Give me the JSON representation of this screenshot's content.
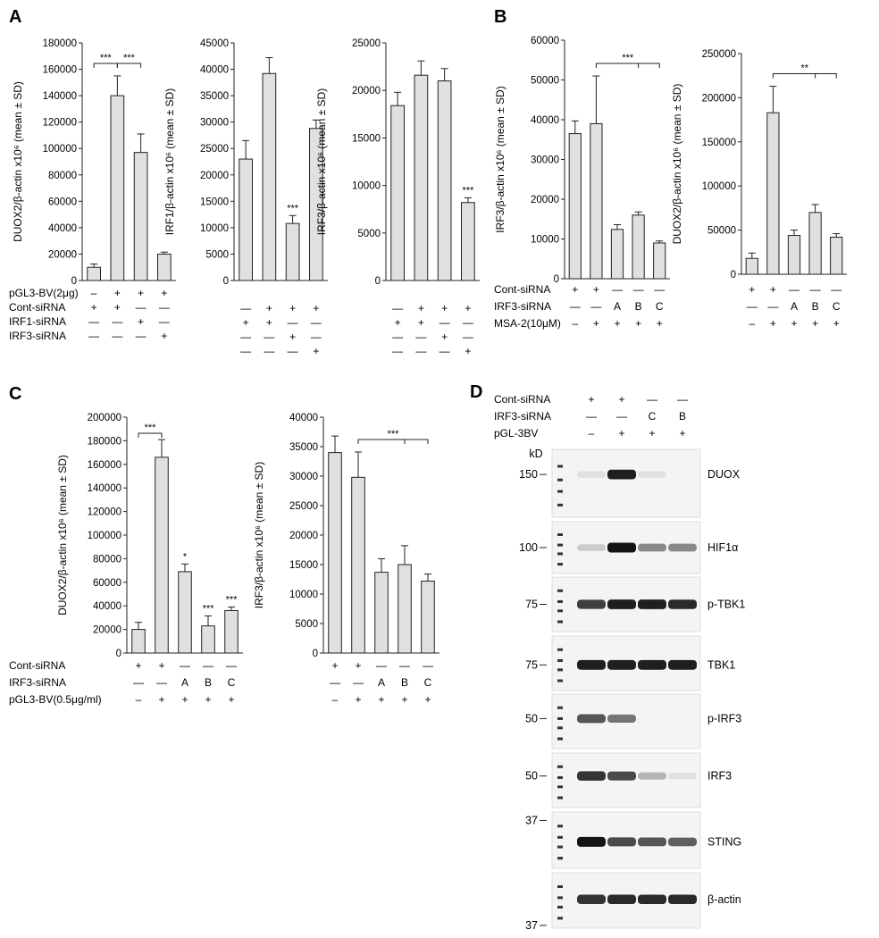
{
  "panels": [
    {
      "letter": "A"
    },
    {
      "letter": "B"
    },
    {
      "letter": "C"
    },
    {
      "letter": "D"
    }
  ],
  "chart_data": [
    {
      "type": "bar",
      "panel": "A",
      "ylabel": "DUOX2/β-actin x10⁶ (mean ± SD)",
      "ylim": [
        0,
        180000
      ],
      "yticks": [
        0,
        20000,
        40000,
        60000,
        80000,
        100000,
        120000,
        140000,
        160000,
        180000
      ],
      "values": [
        10000,
        140000,
        97000,
        20000
      ],
      "errors": [
        2500,
        15000,
        14000,
        1500
      ],
      "bar_color": "#e0e0e0",
      "conditions": [
        {
          "label": "pGL3-BV(2μg)",
          "symbols": [
            "–",
            "+",
            "+",
            "+"
          ]
        },
        {
          "label": "Cont-siRNA",
          "symbols": [
            "+",
            "+",
            "—",
            "—"
          ]
        },
        {
          "label": "IRF1-siRNA",
          "symbols": [
            "—",
            "—",
            "+",
            "—"
          ]
        },
        {
          "label": "IRF3-siRNA",
          "symbols": [
            "—",
            "—",
            "—",
            "+"
          ]
        }
      ],
      "brackets": [
        {
          "from": 0,
          "to": 1,
          "text": "***"
        },
        {
          "from": 1,
          "to": 2,
          "text": "***"
        }
      ],
      "bar_sig": []
    },
    {
      "type": "bar",
      "panel": "A",
      "ylabel": "IRF1/β-actin x10⁶ (mean ± SD)",
      "ylim": [
        0,
        45000
      ],
      "yticks": [
        0,
        5000,
        10000,
        15000,
        20000,
        25000,
        30000,
        35000,
        40000,
        45000
      ],
      "values": [
        23000,
        39200,
        10800,
        28800
      ],
      "errors": [
        3500,
        3000,
        1500,
        1600
      ],
      "bar_color": "#e0e0e0",
      "conditions": [
        {
          "label": "",
          "symbols": [
            "—",
            "+",
            "+",
            "+"
          ]
        },
        {
          "label": "",
          "symbols": [
            "+",
            "+",
            "—",
            "—"
          ]
        },
        {
          "label": "",
          "symbols": [
            "—",
            "—",
            "+",
            "—"
          ]
        },
        {
          "label": "",
          "symbols": [
            "—",
            "—",
            "—",
            "+"
          ]
        }
      ],
      "brackets": [],
      "bar_sig": [
        {
          "index": 2,
          "text": "***"
        }
      ]
    },
    {
      "type": "bar",
      "panel": "A",
      "ylabel": "IRF3/β-actin x10⁶ (mean ± SD)",
      "ylim": [
        0,
        25000
      ],
      "yticks": [
        0,
        5000,
        10000,
        15000,
        20000,
        25000
      ],
      "values": [
        18400,
        21600,
        21000,
        8200
      ],
      "errors": [
        1400,
        1500,
        1300,
        500
      ],
      "bar_color": "#e0e0e0",
      "conditions": [
        {
          "label": "",
          "symbols": [
            "—",
            "+",
            "+",
            "+"
          ]
        },
        {
          "label": "",
          "symbols": [
            "+",
            "+",
            "—",
            "—"
          ]
        },
        {
          "label": "",
          "symbols": [
            "—",
            "—",
            "+",
            "—"
          ]
        },
        {
          "label": "",
          "symbols": [
            "—",
            "—",
            "—",
            "+"
          ]
        }
      ],
      "brackets": [],
      "bar_sig": [
        {
          "index": 3,
          "text": "***"
        }
      ]
    },
    {
      "type": "bar",
      "panel": "B",
      "ylabel": "IRF3/β-actin x10⁶ (mean ± SD)",
      "ylim": [
        0,
        60000
      ],
      "yticks": [
        0,
        10000,
        20000,
        30000,
        40000,
        50000,
        60000
      ],
      "values": [
        36500,
        39000,
        12400,
        16000,
        9000
      ],
      "errors": [
        3200,
        12000,
        1200,
        800,
        500
      ],
      "bar_color": "#e0e0e0",
      "conditions": [
        {
          "label": "Cont-siRNA",
          "symbols": [
            "+",
            "+",
            "—",
            "—",
            "—"
          ]
        },
        {
          "label": "IRF3-siRNA",
          "symbols": [
            "—",
            "—",
            "A",
            "B",
            "C"
          ]
        },
        {
          "label": "MSA-2(10μM)",
          "symbols": [
            "–",
            "+",
            "+",
            "+",
            "+"
          ]
        }
      ],
      "brackets": [
        {
          "from": 1,
          "to": 4,
          "mid": 3,
          "text": "***"
        }
      ],
      "bar_sig": []
    },
    {
      "type": "bar",
      "panel": "B",
      "ylabel": "DUOX2/β-actin x10⁶ (mean ± SD)",
      "ylim": [
        0,
        250000
      ],
      "yticks": [
        0,
        50000,
        100000,
        150000,
        200000,
        250000
      ],
      "values": [
        18000,
        183000,
        44000,
        70000,
        42000
      ],
      "errors": [
        6000,
        30000,
        6000,
        9000,
        4000
      ],
      "bar_color": "#e0e0e0",
      "conditions": [
        {
          "label": "",
          "symbols": [
            "+",
            "+",
            "—",
            "—",
            "—"
          ]
        },
        {
          "label": "",
          "symbols": [
            "—",
            "—",
            "A",
            "B",
            "C"
          ]
        },
        {
          "label": "",
          "symbols": [
            "–",
            "+",
            "+",
            "+",
            "+"
          ]
        }
      ],
      "brackets": [
        {
          "from": 1,
          "to": 4,
          "mid": 3,
          "text": "**"
        }
      ],
      "bar_sig": []
    },
    {
      "type": "bar",
      "panel": "C",
      "ylabel": "DUOX2/β-actin x10⁶ (mean ± SD)",
      "ylim": [
        0,
        200000
      ],
      "yticks": [
        0,
        20000,
        40000,
        60000,
        80000,
        100000,
        120000,
        140000,
        160000,
        180000,
        200000
      ],
      "values": [
        20000,
        166000,
        69000,
        23000,
        36000
      ],
      "errors": [
        6000,
        15000,
        6500,
        8500,
        3000
      ],
      "bar_color": "#e0e0e0",
      "conditions": [
        {
          "label": "Cont-siRNA",
          "symbols": [
            "+",
            "+",
            "—",
            "—",
            "—"
          ]
        },
        {
          "label": "IRF3-siRNA",
          "symbols": [
            "—",
            "—",
            "A",
            "B",
            "C"
          ]
        },
        {
          "label": "pGL3-BV(0.5μg/ml)",
          "symbols": [
            "–",
            "+",
            "+",
            "+",
            "+"
          ]
        }
      ],
      "brackets": [
        {
          "from": 0,
          "to": 1,
          "text": "***"
        }
      ],
      "bar_sig": [
        {
          "index": 2,
          "text": "*"
        },
        {
          "index": 3,
          "text": "***"
        },
        {
          "index": 4,
          "text": "***"
        }
      ]
    },
    {
      "type": "bar",
      "panel": "C",
      "ylabel": "IRF3/β-actin x10⁶ (mean ± SD)",
      "ylim": [
        0,
        40000
      ],
      "yticks": [
        0,
        5000,
        10000,
        15000,
        20000,
        25000,
        30000,
        35000,
        40000
      ],
      "values": [
        34000,
        29800,
        13700,
        15000,
        12200
      ],
      "errors": [
        2800,
        4300,
        2300,
        3200,
        1200
      ],
      "bar_color": "#e0e0e0",
      "conditions": [
        {
          "label": "",
          "symbols": [
            "+",
            "+",
            "—",
            "—",
            "—"
          ]
        },
        {
          "label": "",
          "symbols": [
            "—",
            "—",
            "A",
            "B",
            "C"
          ]
        },
        {
          "label": "",
          "symbols": [
            "–",
            "+",
            "+",
            "+",
            "+"
          ]
        }
      ],
      "brackets": [
        {
          "from": 1,
          "to": 4,
          "mid": 3,
          "text": "***"
        }
      ],
      "bar_sig": []
    }
  ],
  "western_blot": {
    "conditions": [
      {
        "label": "Cont-siRNA",
        "symbols": [
          "+",
          "+",
          "—",
          "—"
        ]
      },
      {
        "label": "IRF3-siRNA",
        "symbols": [
          "—",
          "—",
          "C",
          "B"
        ]
      },
      {
        "label": "pGL-3BV",
        "symbols": [
          "–",
          "+",
          "+",
          "+"
        ]
      }
    ],
    "kd_label": "kD",
    "panels": [
      {
        "label": "DUOX",
        "marker": "150",
        "intensities": [
          0.05,
          0.95,
          0.05,
          0.0
        ]
      },
      {
        "label": "HIF1α",
        "marker": "100",
        "intensities": [
          0.15,
          1.0,
          0.45,
          0.45
        ]
      },
      {
        "label": "p-TBK1",
        "marker": "75",
        "intensities": [
          0.8,
          0.95,
          0.95,
          0.9
        ]
      },
      {
        "label": "TBK1",
        "marker": "75",
        "intensities": [
          0.95,
          0.95,
          0.95,
          0.95
        ]
      },
      {
        "label": "p-IRF3",
        "marker": "50",
        "intensities": [
          0.7,
          0.55,
          0.0,
          0.0
        ]
      },
      {
        "label": "IRF3",
        "marker": "50",
        "intensities": [
          0.85,
          0.75,
          0.25,
          0.05
        ]
      },
      {
        "label": "STING",
        "marker": "37",
        "intensities": [
          1.0,
          0.75,
          0.7,
          0.65
        ]
      },
      {
        "label": "β-actin",
        "marker": "37",
        "intensities": [
          0.85,
          0.9,
          0.9,
          0.9
        ]
      }
    ]
  }
}
